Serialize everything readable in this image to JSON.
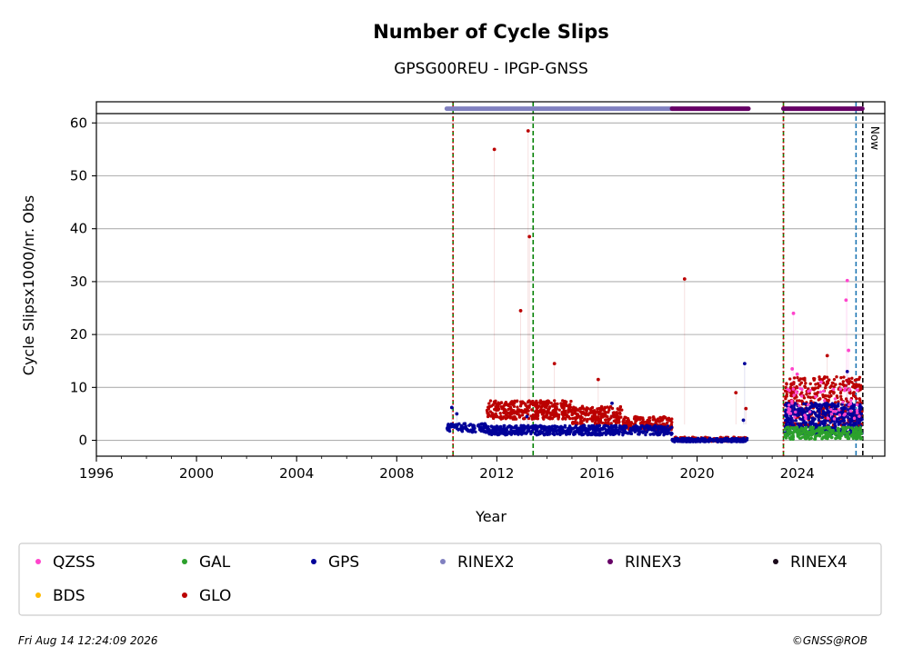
{
  "title": "Number of Cycle Slips",
  "subtitle": "GPSG00REU - IPGP-GNSS",
  "footer": {
    "timestamp": "Fri Aug 14 12:24:09 2026",
    "credit": "©GNSS@ROB"
  },
  "now_label": "Now",
  "chart_data": {
    "type": "scatter",
    "title": "Number of Cycle Slips",
    "subtitle": "GPSG00REU - IPGP-GNSS",
    "xlabel": "Year",
    "ylabel": "Cycle Slipsx1000/nr. Obs",
    "xlim": [
      1996,
      2027.5
    ],
    "ylim": [
      -3,
      64
    ],
    "x_ticks": [
      "1996",
      "2000",
      "2004",
      "2008",
      "2012",
      "2016",
      "2020",
      "2024"
    ],
    "x_tick_values": [
      1996,
      2000,
      2004,
      2008,
      2012,
      2016,
      2020,
      2024
    ],
    "y_ticks": [
      "0",
      "10",
      "20",
      "30",
      "40",
      "50",
      "60"
    ],
    "y_tick_values": [
      0,
      10,
      20,
      30,
      40,
      50,
      60
    ],
    "grid": "horizontal",
    "legend_position": "bottom",
    "legend": [
      {
        "name": "QZSS",
        "color": "#ff44cc"
      },
      {
        "name": "GAL",
        "color": "#2ca02c"
      },
      {
        "name": "GPS",
        "color": "#000099"
      },
      {
        "name": "RINEX2",
        "color": "#8080c0"
      },
      {
        "name": "RINEX3",
        "color": "#660066"
      },
      {
        "name": "RINEX4",
        "color": "#1a0a1a"
      },
      {
        "name": "BDS",
        "color": "#ffbb00"
      },
      {
        "name": "GLO",
        "color": "#bb0000"
      }
    ],
    "vertical_lines": [
      {
        "x": 2010.25,
        "color": "#008000",
        "style": "dashed"
      },
      {
        "x": 2010.25,
        "color": "#cc0000",
        "style": "dotted"
      },
      {
        "x": 2013.45,
        "color": "#008000",
        "style": "dashed"
      },
      {
        "x": 2023.45,
        "color": "#008000",
        "style": "dashed"
      },
      {
        "x": 2023.45,
        "color": "#cc0000",
        "style": "dotted"
      },
      {
        "x": 2026.35,
        "color": "#1f77b4",
        "style": "dashed"
      },
      {
        "x": 2026.62,
        "color": "#000000",
        "style": "dashed"
      }
    ],
    "rinex_bars": [
      {
        "name": "RINEX2",
        "start": 2010.0,
        "end": 2019.0,
        "y": 62.7
      },
      {
        "name": "RINEX3",
        "start": 2019.0,
        "end": 2022.05,
        "y": 62.7
      },
      {
        "name": "RINEX3",
        "start": 2023.45,
        "end": 2026.6,
        "y": 62.7
      }
    ],
    "series": [
      {
        "name": "GLO",
        "color": "#bb0000",
        "bands": [
          {
            "start": 2011.6,
            "end": 2015.0,
            "low": 4.0,
            "high": 7.5,
            "count": 360
          },
          {
            "start": 2015.0,
            "end": 2017.0,
            "low": 3.0,
            "high": 6.5,
            "count": 200
          },
          {
            "start": 2017.0,
            "end": 2019.0,
            "low": 2.0,
            "high": 4.5,
            "count": 190
          },
          {
            "start": 2019.0,
            "end": 2022.0,
            "low": -0.2,
            "high": 0.6,
            "count": 130
          },
          {
            "start": 2023.5,
            "end": 2026.6,
            "low": 2.0,
            "high": 12.0,
            "count": 380
          }
        ],
        "points": [
          [
            2011.9,
            55
          ],
          [
            2012.95,
            24.5
          ],
          [
            2013.25,
            58.5
          ],
          [
            2013.3,
            38.5
          ],
          [
            2014.3,
            14.5
          ],
          [
            2016.05,
            11.5
          ],
          [
            2019.5,
            30.5
          ],
          [
            2021.55,
            9
          ],
          [
            2021.95,
            6
          ],
          [
            2025.2,
            16
          ]
        ]
      },
      {
        "name": "GPS",
        "color": "#000099",
        "bands": [
          {
            "start": 2010.0,
            "end": 2011.6,
            "low": 1.5,
            "high": 3.2,
            "count": 110
          },
          {
            "start": 2011.6,
            "end": 2019.0,
            "low": 1.0,
            "high": 2.8,
            "count": 620
          },
          {
            "start": 2019.0,
            "end": 2022.0,
            "low": -0.3,
            "high": 0.4,
            "count": 200
          },
          {
            "start": 2023.5,
            "end": 2026.6,
            "low": 1.0,
            "high": 7.0,
            "count": 500
          }
        ],
        "points": [
          [
            2010.2,
            6.2
          ],
          [
            2010.4,
            5.0
          ],
          [
            2013.2,
            4.5
          ],
          [
            2016.6,
            7.0
          ],
          [
            2021.9,
            14.5
          ],
          [
            2021.85,
            3.8
          ],
          [
            2026.0,
            13.0
          ]
        ]
      },
      {
        "name": "GAL",
        "color": "#2ca02c",
        "bands": [
          {
            "start": 2023.5,
            "end": 2026.6,
            "low": 0.2,
            "high": 2.5,
            "count": 260
          }
        ],
        "points": []
      },
      {
        "name": "QZSS",
        "color": "#ff44cc",
        "bands": [
          {
            "start": 2023.6,
            "end": 2026.6,
            "low": 4.0,
            "high": 10.0,
            "count": 60
          }
        ],
        "points": [
          [
            2023.85,
            24
          ],
          [
            2023.8,
            13.5
          ],
          [
            2024.0,
            12.5
          ],
          [
            2025.95,
            26.5
          ],
          [
            2026.0,
            30.2
          ],
          [
            2026.05,
            17
          ],
          [
            2026.4,
            9.5
          ],
          [
            2024.95,
            11
          ]
        ]
      }
    ]
  }
}
